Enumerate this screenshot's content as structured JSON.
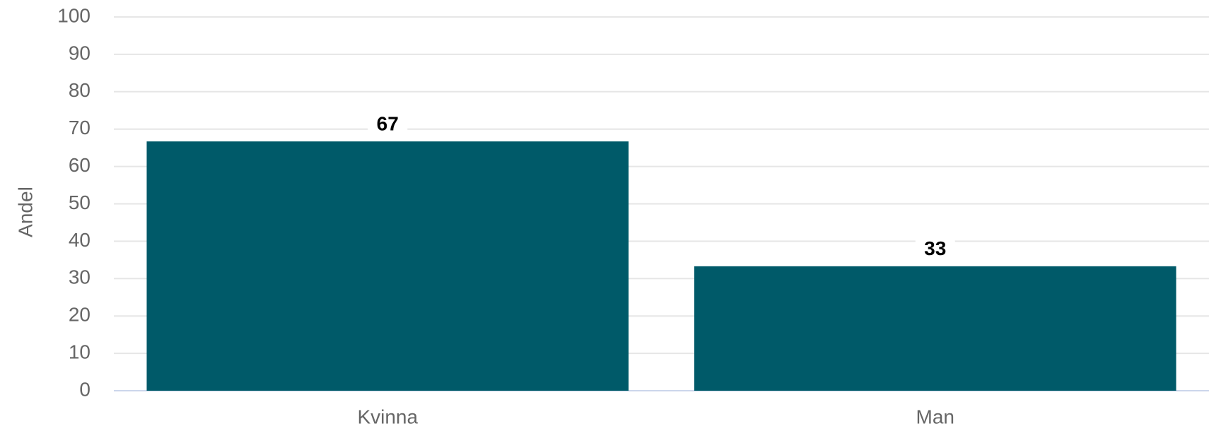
{
  "chart_data": {
    "type": "bar",
    "y_label": "Andel",
    "categories": [
      "Kvinna",
      "Man"
    ],
    "values": [
      66.7,
      33.3
    ],
    "value_labels": [
      "67",
      "33"
    ],
    "color": "#005a69",
    "ylim": [
      0,
      100
    ],
    "yticks": [
      0,
      10,
      20,
      30,
      40,
      50,
      60,
      70,
      80,
      90,
      100
    ],
    "grid": true
  }
}
